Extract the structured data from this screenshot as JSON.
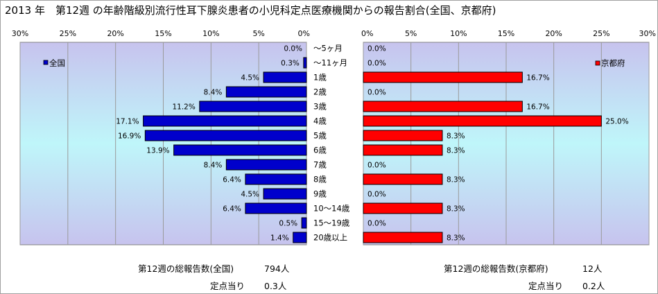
{
  "title": "2013 年　第12週 の年齢階級別流行性耳下腺炎患者の小児科定点医療機関からの報告割合(全国、京都府)",
  "chart_data": [
    {
      "type": "bar",
      "orientation": "horizontal",
      "direction": "right-to-left",
      "categories": [
        "～5ヶ月",
        "～11ヶ月",
        "1歳",
        "2歳",
        "3歳",
        "4歳",
        "5歳",
        "6歳",
        "7歳",
        "8歳",
        "9歳",
        "10～14歳",
        "15～19歳",
        "20歳以上"
      ],
      "series": [
        {
          "name": "全国",
          "color": "#0000cc",
          "values": [
            0.0,
            0.3,
            4.5,
            8.4,
            11.2,
            17.1,
            16.9,
            13.9,
            8.4,
            6.4,
            4.5,
            6.4,
            0.5,
            1.4
          ],
          "labels": [
            "0.0%",
            "0.3%",
            "4.5%",
            "8.4%",
            "11.2%",
            "17.1%",
            "16.9%",
            "13.9%",
            "8.4%",
            "6.4%",
            "4.5%",
            "6.4%",
            "0.5%",
            "1.4%"
          ]
        }
      ],
      "xlim": [
        0,
        30
      ],
      "xticks": [
        30,
        25,
        20,
        15,
        10,
        5,
        0
      ],
      "xtick_labels": [
        "30%",
        "25%",
        "20%",
        "15%",
        "10%",
        "5%",
        "0%"
      ],
      "legend": "top-left",
      "grid": true
    },
    {
      "type": "bar",
      "orientation": "horizontal",
      "categories": [
        "～5ヶ月",
        "～11ヶ月",
        "1歳",
        "2歳",
        "3歳",
        "4歳",
        "5歳",
        "6歳",
        "7歳",
        "8歳",
        "9歳",
        "10～14歳",
        "15～19歳",
        "20歳以上"
      ],
      "series": [
        {
          "name": "京都府",
          "color": "#ff0000",
          "values": [
            0.0,
            0.0,
            16.7,
            0.0,
            16.7,
            25.0,
            8.3,
            8.3,
            0.0,
            8.3,
            0.0,
            8.3,
            0.0,
            8.3
          ],
          "labels": [
            "0.0%",
            "0.0%",
            "16.7%",
            "0.0%",
            "16.7%",
            "25.0%",
            "8.3%",
            "8.3%",
            "0.0%",
            "8.3%",
            "0.0%",
            "8.3%",
            "0.0%",
            "8.3%"
          ]
        }
      ],
      "xlim": [
        0,
        30
      ],
      "xticks": [
        0,
        5,
        10,
        15,
        20,
        25,
        30
      ],
      "xtick_labels": [
        "0%",
        "5%",
        "10%",
        "15%",
        "20%",
        "25%",
        "30%"
      ],
      "legend": "top-right",
      "grid": true
    }
  ],
  "footer": {
    "national_label": "第12週の総報告数(全国)",
    "national_value": "794人",
    "national_per_label": "定点当り",
    "national_per_value": "0.3人",
    "kyoto_label": "第12週の総報告数(京都府)",
    "kyoto_value": "12人",
    "kyoto_per_label": "定点当り",
    "kyoto_per_value": "0.2人"
  }
}
